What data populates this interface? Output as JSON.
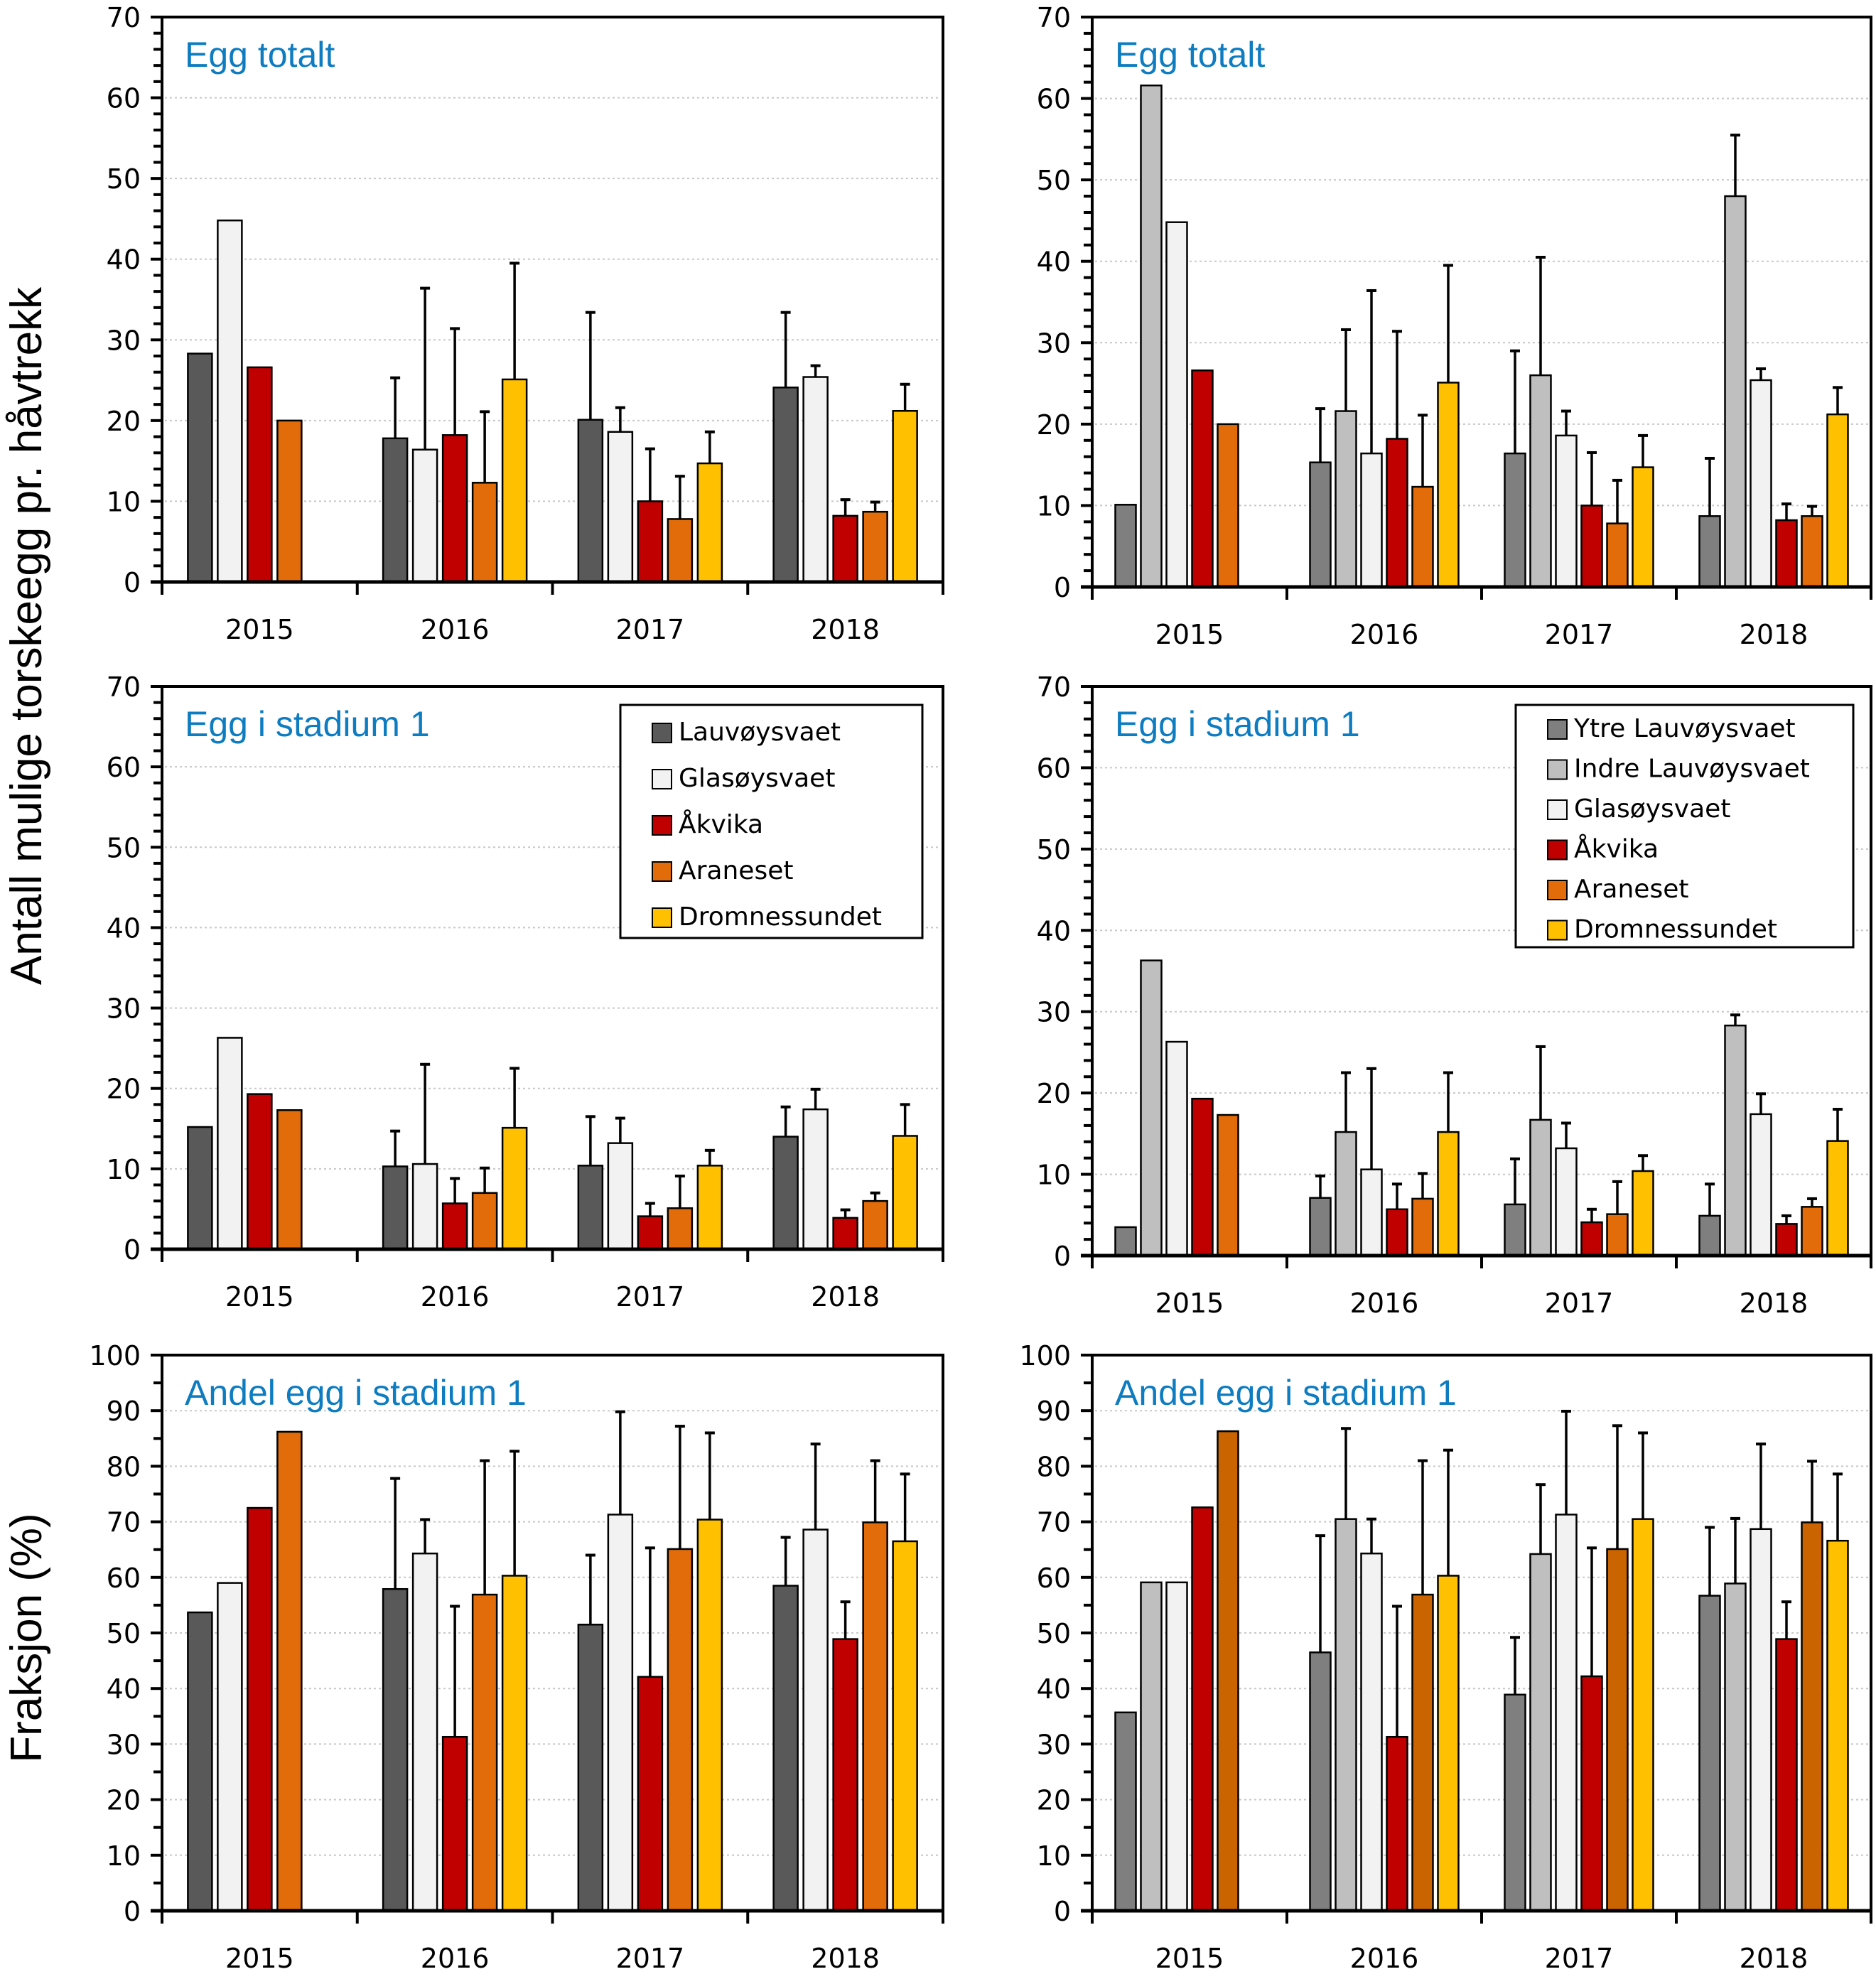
{
  "figure": {
    "ylabel_top": "Antall mulige torskeegg pr. håvtrekk",
    "ylabel_bottom": "Fraksjon (%)",
    "title_color": "#0e7cc0"
  },
  "chart_data": [
    {
      "id": "top-left",
      "type": "bar",
      "title": "Egg totalt",
      "categories": [
        "2015",
        "2016",
        "2017",
        "2018"
      ],
      "ylim": [
        0,
        70
      ],
      "yticks": [
        0,
        10,
        20,
        30,
        40,
        50,
        60,
        70
      ],
      "ylabel": "Antall mulige torskeegg pr. håvtrekk",
      "grid": true,
      "legend": null,
      "series": [
        {
          "name": "Lauvøysvaet",
          "color": "#595959",
          "values": [
            28.3,
            17.8,
            20.1,
            24.1
          ],
          "errors": [
            null,
            25.3,
            33.4,
            33.4
          ]
        },
        {
          "name": "Glasøysvaet",
          "color": "#f2f2f2",
          "values": [
            44.8,
            16.4,
            18.6,
            25.4
          ],
          "errors": [
            null,
            36.4,
            21.6,
            26.8
          ]
        },
        {
          "name": "Åkvika",
          "color": "#c00000",
          "values": [
            26.6,
            18.2,
            10.0,
            8.2
          ],
          "errors": [
            null,
            31.4,
            16.5,
            10.2
          ]
        },
        {
          "name": "Araneset",
          "color": "#e26b0a",
          "values": [
            20.0,
            12.3,
            7.8,
            8.7
          ],
          "errors": [
            null,
            21.1,
            13.1,
            9.9
          ]
        },
        {
          "name": "Dromnessundet",
          "color": "#ffc000",
          "values": [
            null,
            25.1,
            14.7,
            21.2
          ],
          "errors": [
            null,
            39.5,
            18.6,
            24.5
          ]
        }
      ]
    },
    {
      "id": "top-right",
      "type": "bar",
      "title": "Egg totalt",
      "categories": [
        "2015",
        "2016",
        "2017",
        "2018"
      ],
      "ylim": [
        0,
        70
      ],
      "yticks": [
        0,
        10,
        20,
        30,
        40,
        50,
        60,
        70
      ],
      "grid": true,
      "legend": null,
      "series": [
        {
          "name": "Ytre Lauvøysvaet",
          "color": "#7f7f7f",
          "values": [
            10.1,
            15.3,
            16.4,
            8.7
          ],
          "errors": [
            null,
            21.9,
            29.0,
            15.8
          ]
        },
        {
          "name": "Indre Lauvøysvaet",
          "color": "#bfbfbf",
          "values": [
            61.6,
            21.6,
            26.0,
            48.0
          ],
          "errors": [
            null,
            31.6,
            40.5,
            55.5
          ]
        },
        {
          "name": "Glasøysvaet",
          "color": "#f2f2f2",
          "values": [
            44.8,
            16.4,
            18.6,
            25.4
          ],
          "errors": [
            null,
            36.4,
            21.6,
            26.8
          ]
        },
        {
          "name": "Åkvika",
          "color": "#c00000",
          "values": [
            26.6,
            18.2,
            10.0,
            8.2
          ],
          "errors": [
            null,
            31.4,
            16.5,
            10.2
          ]
        },
        {
          "name": "Araneset",
          "color": "#e26b0a",
          "values": [
            20.0,
            12.3,
            7.8,
            8.7
          ],
          "errors": [
            null,
            21.1,
            13.1,
            9.9
          ]
        },
        {
          "name": "Dromnessundet",
          "color": "#ffc000",
          "values": [
            null,
            25.1,
            14.7,
            21.2
          ],
          "errors": [
            null,
            39.5,
            18.6,
            24.5
          ]
        }
      ]
    },
    {
      "id": "middle-left",
      "type": "bar",
      "title": "Egg i stadium 1",
      "categories": [
        "2015",
        "2016",
        "2017",
        "2018"
      ],
      "ylim": [
        0,
        70
      ],
      "yticks": [
        0,
        10,
        20,
        30,
        40,
        50,
        60,
        70
      ],
      "grid": true,
      "legend": "top-right",
      "series": [
        {
          "name": "Lauvøysvaet",
          "color": "#595959",
          "values": [
            15.2,
            10.3,
            10.4,
            14.0
          ],
          "errors": [
            null,
            14.7,
            16.5,
            17.7
          ]
        },
        {
          "name": "Glasøysvaet",
          "color": "#f2f2f2",
          "values": [
            26.3,
            10.6,
            13.2,
            17.4
          ],
          "errors": [
            null,
            23.0,
            16.3,
            19.9
          ]
        },
        {
          "name": "Åkvika",
          "color": "#c00000",
          "values": [
            19.3,
            5.7,
            4.1,
            3.9
          ],
          "errors": [
            null,
            8.8,
            5.7,
            4.9
          ]
        },
        {
          "name": "Araneset",
          "color": "#e26b0a",
          "values": [
            17.3,
            7.0,
            5.1,
            6.0
          ],
          "errors": [
            null,
            10.1,
            9.1,
            7.0
          ]
        },
        {
          "name": "Dromnessundet",
          "color": "#ffc000",
          "values": [
            null,
            15.1,
            10.4,
            14.1
          ],
          "errors": [
            null,
            22.5,
            12.3,
            18.0
          ]
        }
      ]
    },
    {
      "id": "middle-right",
      "type": "bar",
      "title": "Egg i stadium 1",
      "categories": [
        "2015",
        "2016",
        "2017",
        "2018"
      ],
      "ylim": [
        0,
        70
      ],
      "yticks": [
        0,
        10,
        20,
        30,
        40,
        50,
        60,
        70
      ],
      "grid": true,
      "legend": "top-right",
      "series": [
        {
          "name": "Ytre Lauvøysvaet",
          "color": "#7f7f7f",
          "values": [
            3.5,
            7.1,
            6.3,
            4.9
          ],
          "errors": [
            null,
            9.8,
            11.9,
            8.8
          ]
        },
        {
          "name": "Indre Lauvøysvaet",
          "color": "#bfbfbf",
          "values": [
            36.3,
            15.2,
            16.7,
            28.3
          ],
          "errors": [
            null,
            22.5,
            25.7,
            29.6
          ]
        },
        {
          "name": "Glasøysvaet",
          "color": "#f2f2f2",
          "values": [
            26.3,
            10.6,
            13.2,
            17.4
          ],
          "errors": [
            null,
            23.0,
            16.3,
            19.9
          ]
        },
        {
          "name": "Åkvika",
          "color": "#c00000",
          "values": [
            19.3,
            5.7,
            4.1,
            3.9
          ],
          "errors": [
            null,
            8.8,
            5.7,
            4.9
          ]
        },
        {
          "name": "Araneset",
          "color": "#e26b0a",
          "values": [
            17.3,
            7.0,
            5.1,
            6.0
          ],
          "errors": [
            null,
            10.1,
            9.1,
            7.0
          ]
        },
        {
          "name": "Dromnessundet",
          "color": "#ffc000",
          "values": [
            null,
            15.2,
            10.4,
            14.1
          ],
          "errors": [
            null,
            22.5,
            12.3,
            18.0
          ]
        }
      ]
    },
    {
      "id": "bottom-left",
      "type": "bar",
      "title": "Andel egg i stadium 1",
      "categories": [
        "2015",
        "2016",
        "2017",
        "2018"
      ],
      "ylim": [
        0,
        100
      ],
      "yticks": [
        0,
        10,
        20,
        30,
        40,
        50,
        60,
        70,
        80,
        90,
        100
      ],
      "ylabel": "Fraksjon (%)",
      "grid": true,
      "legend": null,
      "series": [
        {
          "name": "Lauvøysvaet",
          "color": "#595959",
          "values": [
            53.7,
            57.9,
            51.5,
            58.5
          ],
          "errors": [
            null,
            77.8,
            64.0,
            67.2
          ]
        },
        {
          "name": "Glasøysvaet",
          "color": "#f2f2f2",
          "values": [
            59.0,
            64.3,
            71.3,
            68.6
          ],
          "errors": [
            null,
            70.4,
            89.8,
            84.0
          ]
        },
        {
          "name": "Åkvika",
          "color": "#c00000",
          "values": [
            72.5,
            31.3,
            42.1,
            48.9
          ],
          "errors": [
            null,
            54.8,
            65.3,
            55.6
          ]
        },
        {
          "name": "Araneset",
          "color": "#e26b0a",
          "values": [
            86.2,
            56.9,
            65.1,
            69.9
          ],
          "errors": [
            null,
            81.0,
            87.2,
            81.0
          ]
        },
        {
          "name": "Dromnessundet",
          "color": "#ffc000",
          "values": [
            null,
            60.3,
            70.4,
            66.5
          ],
          "errors": [
            null,
            82.7,
            86.0,
            78.6
          ]
        }
      ]
    },
    {
      "id": "bottom-right",
      "type": "bar",
      "title": "Andel egg i stadium 1",
      "categories": [
        "2015",
        "2016",
        "2017",
        "2018"
      ],
      "ylim": [
        0,
        100
      ],
      "yticks": [
        0,
        10,
        20,
        30,
        40,
        50,
        60,
        70,
        80,
        90,
        100
      ],
      "grid": true,
      "legend": null,
      "series": [
        {
          "name": "Ytre Lauvøysvaet",
          "color": "#7f7f7f",
          "values": [
            35.7,
            46.5,
            38.9,
            56.7
          ],
          "errors": [
            null,
            67.5,
            49.2,
            69.0
          ]
        },
        {
          "name": "Indre Lauvøysvaet",
          "color": "#bfbfbf",
          "values": [
            59.1,
            70.5,
            64.2,
            58.9
          ],
          "errors": [
            null,
            86.8,
            76.7,
            70.6
          ]
        },
        {
          "name": "Glasøysvaet",
          "color": "#f2f2f2",
          "values": [
            59.1,
            64.3,
            71.3,
            68.7
          ],
          "errors": [
            null,
            70.5,
            89.9,
            84.0
          ]
        },
        {
          "name": "Åkvika",
          "color": "#c00000",
          "values": [
            72.6,
            31.3,
            42.2,
            48.9
          ],
          "errors": [
            null,
            54.8,
            65.3,
            55.6
          ]
        },
        {
          "name": "Araneset",
          "color": "#c96400",
          "values": [
            86.3,
            56.9,
            65.1,
            69.9
          ],
          "errors": [
            null,
            81.0,
            87.3,
            80.9
          ]
        },
        {
          "name": "Dromnessundet",
          "color": "#ffc000",
          "values": [
            null,
            60.3,
            70.5,
            66.6
          ],
          "errors": [
            null,
            82.9,
            86.0,
            78.6
          ]
        }
      ]
    }
  ]
}
